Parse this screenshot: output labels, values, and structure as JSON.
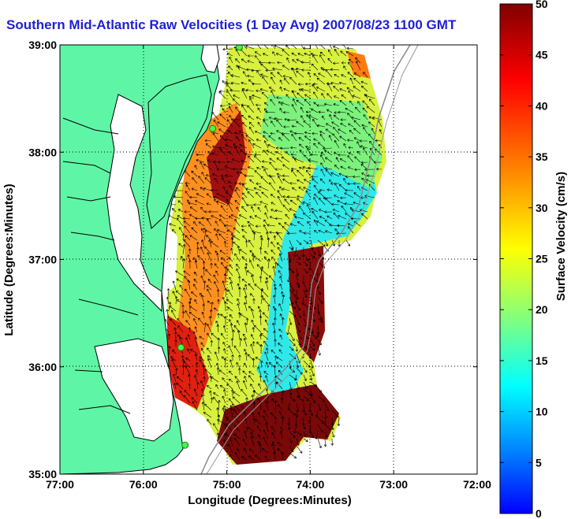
{
  "chart_data": {
    "type": "heatmap",
    "title": "Southern Mid-Atlantic Raw Velocities (1 Day Avg) 2007/08/23 1100 GMT",
    "xlabel": "Longitude (Degrees:Minutes)",
    "ylabel": "Latitude (Degrees:Minutes)",
    "colorbar_label": "Surface Velocity (cm/s)",
    "xlim": [
      -77,
      -72
    ],
    "ylim": [
      35,
      39
    ],
    "x_ticks": [
      {
        "value": -77,
        "label": "77:00"
      },
      {
        "value": -76,
        "label": "76:00"
      },
      {
        "value": -75,
        "label": "75:00"
      },
      {
        "value": -74,
        "label": "74:00"
      },
      {
        "value": -73,
        "label": "73:00"
      },
      {
        "value": -72,
        "label": "72:00"
      }
    ],
    "y_ticks": [
      {
        "value": 35,
        "label": "35:00"
      },
      {
        "value": 36,
        "label": "36:00"
      },
      {
        "value": 37,
        "label": "37:00"
      },
      {
        "value": 38,
        "label": "38:00"
      },
      {
        "value": 39,
        "label": "39:00"
      }
    ],
    "colorbar_range": [
      0,
      50
    ],
    "colorbar_ticks": [
      0,
      5,
      10,
      15,
      20,
      25,
      30,
      35,
      40,
      45,
      50
    ],
    "colormap": [
      "#0000ff",
      "#0080ff",
      "#00ffff",
      "#80ff80",
      "#ffff00",
      "#ff8000",
      "#ff0000",
      "#800000"
    ],
    "grid": "dotted",
    "land_color": "#5ff5a6",
    "coast_color": "#000000",
    "vector_color": "#000000",
    "stations": [
      {
        "lon": -74.85,
        "lat": 38.98
      },
      {
        "lon": -75.17,
        "lat": 38.22
      },
      {
        "lon": -75.55,
        "lat": 36.18
      },
      {
        "lon": -75.5,
        "lat": 35.27
      }
    ]
  }
}
